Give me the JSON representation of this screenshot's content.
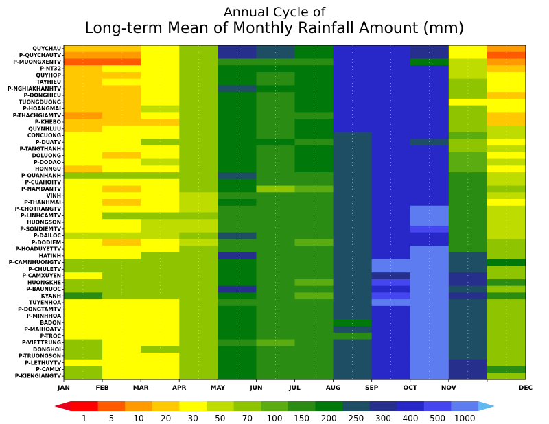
{
  "chart_data": {
    "type": "heatmap",
    "title": "Annual Cycle of",
    "subtitle": "Long-term Mean of Monthly Rainfall Amount (mm)",
    "x_categories": [
      "JAN",
      "FEB",
      "MAR",
      "APR",
      "MAY",
      "JUN",
      "JUL",
      "AUG",
      "SEP",
      "OCT",
      "NOV",
      "DEC"
    ],
    "y_categories": [
      "QUYCHAU",
      "P-QUYCHAUTV",
      "P-MUONGXENTV",
      "P-NT32",
      "QUYHOP",
      "TAYHIEU",
      "P-NGHIAKHANHTV",
      "P-DONGHIEU",
      "TUONGDUONG",
      "P-HOANGMAI",
      "P-THACHGIAMTV",
      "P-KHEBO",
      "QUYNHLUU",
      "CONCUONG",
      "P-DUATV",
      "P-TANGTHANH",
      "DOLUONG",
      "P-DODAO",
      "HONNGU",
      "P-QUANHANH",
      "P-CUAHOITV",
      "P-NAMDANTV",
      "VINH",
      "P-THANHMAI",
      "P-CHOTRANGTV",
      "P-LINHCAMTV",
      "HUONGSON",
      "P-SONDIEMTV",
      "P-DAILOC",
      "P-DODIEM",
      "P-HOADUYETTV",
      "HATINH",
      "P-CAMNHUONGTV",
      "P-CHULETV",
      "P-CAMXUYEN",
      "HUONGKHE",
      "P-BAUNUOC",
      "KYANH",
      "TUYENHOA",
      "P-DONGTAMTV",
      "P-MINHHOA",
      "BADON",
      "P-MAIHOATV",
      "P-TROC",
      "P-VIETTRUNG",
      "DONGHOI",
      "P-TRUONGSON",
      "P-LETHUYTV",
      "P-CAMLY",
      "P-KIENGIANGTV"
    ],
    "color_scale": {
      "thresholds": [
        1,
        5,
        10,
        20,
        30,
        50,
        70,
        100,
        150,
        200,
        250,
        300,
        400,
        500,
        1000
      ],
      "colors": [
        "#e8001c",
        "#ff0000",
        "#ff5a00",
        "#ff9a00",
        "#ffc800",
        "#ffff00",
        "#bfdc00",
        "#8fc400",
        "#5aac10",
        "#2b8c14",
        "#00780a",
        "#1e4e64",
        "#26308c",
        "#2828c8",
        "#4646f0",
        "#5c7cf0",
        "#60b8f0"
      ]
    },
    "values": [
      [
        20,
        20,
        30,
        70,
        300,
        250,
        200,
        400,
        400,
        300,
        30,
        10
      ],
      [
        10,
        10,
        30,
        70,
        300,
        250,
        200,
        400,
        400,
        300,
        30,
        5
      ],
      [
        5,
        5,
        30,
        70,
        150,
        150,
        150,
        400,
        400,
        200,
        50,
        10
      ],
      [
        20,
        30,
        30,
        70,
        200,
        200,
        200,
        400,
        400,
        400,
        50,
        20
      ],
      [
        20,
        20,
        30,
        70,
        200,
        150,
        200,
        400,
        400,
        400,
        50,
        30
      ],
      [
        20,
        30,
        30,
        70,
        200,
        150,
        200,
        400,
        400,
        400,
        70,
        30
      ],
      [
        20,
        20,
        30,
        70,
        250,
        200,
        200,
        400,
        400,
        400,
        70,
        30
      ],
      [
        20,
        20,
        30,
        70,
        200,
        150,
        200,
        400,
        400,
        400,
        70,
        20
      ],
      [
        20,
        20,
        30,
        70,
        200,
        150,
        200,
        400,
        400,
        400,
        30,
        30
      ],
      [
        20,
        20,
        50,
        70,
        200,
        150,
        200,
        400,
        400,
        400,
        70,
        30
      ],
      [
        10,
        20,
        30,
        70,
        200,
        150,
        150,
        400,
        400,
        400,
        70,
        20
      ],
      [
        20,
        20,
        20,
        70,
        200,
        150,
        200,
        400,
        400,
        400,
        70,
        20
      ],
      [
        20,
        30,
        30,
        70,
        200,
        150,
        200,
        400,
        400,
        400,
        70,
        50
      ],
      [
        30,
        30,
        30,
        70,
        200,
        150,
        200,
        250,
        400,
        400,
        100,
        50
      ],
      [
        30,
        30,
        70,
        70,
        200,
        200,
        150,
        250,
        400,
        250,
        70,
        30
      ],
      [
        30,
        30,
        30,
        70,
        200,
        150,
        200,
        250,
        400,
        400,
        70,
        50
      ],
      [
        30,
        20,
        30,
        70,
        200,
        150,
        200,
        250,
        400,
        400,
        100,
        30
      ],
      [
        30,
        30,
        50,
        70,
        200,
        150,
        200,
        250,
        400,
        400,
        100,
        50
      ],
      [
        20,
        30,
        30,
        70,
        200,
        150,
        200,
        250,
        400,
        400,
        100,
        30
      ],
      [
        70,
        70,
        70,
        70,
        250,
        150,
        150,
        250,
        400,
        400,
        150,
        50
      ],
      [
        30,
        30,
        30,
        70,
        200,
        150,
        150,
        250,
        400,
        400,
        150,
        50
      ],
      [
        30,
        20,
        30,
        70,
        200,
        70,
        100,
        250,
        400,
        400,
        150,
        70
      ],
      [
        30,
        30,
        30,
        50,
        150,
        150,
        150,
        250,
        400,
        400,
        150,
        50
      ],
      [
        30,
        20,
        30,
        50,
        200,
        150,
        150,
        250,
        400,
        400,
        150,
        30
      ],
      [
        30,
        30,
        30,
        50,
        150,
        150,
        150,
        250,
        400,
        1000,
        150,
        50
      ],
      [
        30,
        70,
        70,
        70,
        150,
        150,
        150,
        250,
        400,
        1000,
        150,
        50
      ],
      [
        30,
        30,
        50,
        50,
        150,
        150,
        150,
        250,
        400,
        1000,
        150,
        50
      ],
      [
        30,
        30,
        50,
        50,
        150,
        150,
        150,
        250,
        400,
        500,
        150,
        50
      ],
      [
        50,
        50,
        50,
        70,
        250,
        150,
        150,
        250,
        400,
        400,
        150,
        50
      ],
      [
        30,
        20,
        30,
        50,
        150,
        150,
        100,
        250,
        400,
        400,
        150,
        70
      ],
      [
        30,
        30,
        30,
        70,
        150,
        150,
        150,
        250,
        400,
        1000,
        150,
        70
      ],
      [
        30,
        30,
        70,
        70,
        300,
        150,
        150,
        250,
        400,
        1000,
        250,
        70
      ],
      [
        70,
        70,
        70,
        70,
        200,
        150,
        150,
        250,
        1000,
        1000,
        250,
        200
      ],
      [
        70,
        70,
        70,
        70,
        200,
        150,
        150,
        250,
        1000,
        1000,
        250,
        70
      ],
      [
        30,
        70,
        70,
        70,
        200,
        150,
        150,
        250,
        300,
        1000,
        300,
        70
      ],
      [
        70,
        70,
        70,
        70,
        200,
        150,
        100,
        250,
        500,
        1000,
        300,
        150
      ],
      [
        70,
        70,
        70,
        70,
        300,
        150,
        150,
        250,
        400,
        1000,
        250,
        70
      ],
      [
        150,
        70,
        70,
        70,
        200,
        150,
        100,
        250,
        500,
        1000,
        300,
        150
      ],
      [
        30,
        30,
        30,
        70,
        150,
        150,
        150,
        250,
        1000,
        1000,
        250,
        70
      ],
      [
        30,
        30,
        30,
        70,
        200,
        150,
        150,
        250,
        400,
        1000,
        250,
        70
      ],
      [
        30,
        30,
        30,
        70,
        200,
        150,
        150,
        250,
        400,
        1000,
        250,
        70
      ],
      [
        30,
        30,
        30,
        70,
        200,
        150,
        150,
        200,
        400,
        1000,
        250,
        70
      ],
      [
        30,
        30,
        30,
        70,
        200,
        150,
        150,
        250,
        400,
        1000,
        250,
        70
      ],
      [
        30,
        30,
        30,
        70,
        200,
        150,
        150,
        150,
        400,
        1000,
        250,
        70
      ],
      [
        70,
        30,
        30,
        70,
        150,
        100,
        150,
        250,
        400,
        1000,
        250,
        70
      ],
      [
        70,
        30,
        70,
        70,
        200,
        150,
        150,
        250,
        400,
        1000,
        250,
        70
      ],
      [
        70,
        30,
        30,
        70,
        200,
        150,
        150,
        250,
        400,
        1000,
        250,
        70
      ],
      [
        30,
        30,
        30,
        70,
        200,
        150,
        150,
        250,
        400,
        1000,
        300,
        70
      ],
      [
        70,
        30,
        30,
        70,
        200,
        150,
        150,
        250,
        400,
        1000,
        300,
        150
      ],
      [
        70,
        30,
        30,
        70,
        200,
        150,
        150,
        250,
        400,
        1000,
        300,
        70
      ]
    ]
  }
}
